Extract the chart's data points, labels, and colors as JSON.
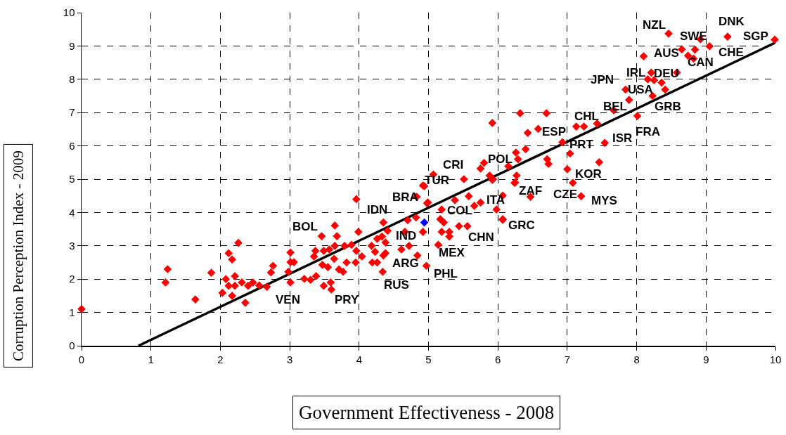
{
  "chart_data": {
    "type": "scatter",
    "xlabel": "Government Effectiveness - 2008",
    "ylabel": "Corruption Perception Index - 2009",
    "xlim": [
      0,
      10
    ],
    "ylim": [
      0,
      10
    ],
    "xticks": [
      0,
      1,
      2,
      3,
      4,
      5,
      6,
      7,
      8,
      9,
      10
    ],
    "yticks": [
      0,
      1,
      2,
      3,
      4,
      5,
      6,
      7,
      8,
      9,
      10
    ],
    "grid": true,
    "marker": "diamond",
    "series": [
      {
        "color": "#ff0000",
        "x": [
          0,
          1.21,
          1.24,
          1.64,
          1.87,
          2.26,
          2.12,
          2.17,
          2.21,
          2.08,
          2.03,
          2.12,
          2.21,
          2.17,
          2.31,
          2.36,
          2.4,
          2.47,
          2.56,
          2.67,
          2.73,
          2.76,
          3.01,
          3.01,
          3.06,
          2.98,
          3.01,
          3.21,
          3.3,
          3.38,
          3.49,
          3.59,
          3.6,
          3.37,
          3.49,
          3.57,
          3.65,
          3.79,
          3.89,
          3.35,
          3.47,
          3.55,
          3.64,
          3.71,
          3.77,
          3.82,
          3.95,
          3.96,
          4.04,
          4.18,
          4.23,
          4.19,
          4.26,
          4.35,
          4.38,
          4.26,
          4.33,
          4.38,
          4.41,
          4.34,
          4.61,
          4.72,
          4.84,
          4.66,
          4.7,
          4.82,
          4.92,
          4.97,
          5.14,
          4.99,
          4.94,
          4.83,
          5.19,
          5.17,
          5.22,
          5.19,
          5.3,
          5.3,
          5.44,
          5.56,
          5.38,
          5.58,
          5.66,
          5.75,
          5.98,
          6.07,
          5.51,
          6.25,
          5.93,
          3.96,
          3.65,
          3.46,
          3.68,
          3.99,
          4.35,
          6.32,
          6.7,
          5.92,
          6.43,
          6.58,
          6.93,
          7.13,
          7.24,
          7.43,
          7.54,
          7.04,
          6.4,
          6.26,
          6.29,
          6.71,
          6.73,
          7.46,
          7,
          7.08,
          7.2,
          5.75,
          5.8,
          6.15,
          6.27,
          6.24,
          5.88,
          5.92,
          6.47,
          6.07,
          6.07,
          5.07,
          4.92,
          4.98,
          8.46,
          9.31,
          9.99,
          8.92,
          9.05,
          8.65,
          8.84,
          8.74,
          8.82,
          8.1,
          8.58,
          8.21,
          8.16,
          8.25,
          8.36,
          8.41,
          8.23,
          7.84,
          7.89,
          7.67,
          8.01
        ],
        "values": [
          1.1,
          1.9,
          2.3,
          1.39,
          2.19,
          3.09,
          2.78,
          2.59,
          2.09,
          2,
          1.59,
          1.8,
          1.8,
          1.5,
          1.9,
          1.29,
          1.8,
          1.9,
          1.81,
          1.77,
          2.2,
          2.4,
          2.8,
          2.51,
          2.51,
          2.22,
          1.9,
          2.01,
          1.98,
          2.09,
          1.8,
          1.9,
          1.69,
          2.85,
          2.85,
          2.89,
          3,
          3,
          3.03,
          2.68,
          2.43,
          2.36,
          2.61,
          2.29,
          2.22,
          2.5,
          2.5,
          2.85,
          2.68,
          3,
          2.82,
          2.5,
          2.5,
          2.71,
          2.78,
          3.21,
          3.28,
          3.1,
          3.45,
          2.22,
          2.89,
          3,
          2.71,
          3.42,
          3.77,
          3.85,
          3.42,
          2.4,
          3.03,
          4.3,
          4.79,
          4.47,
          4.09,
          3.8,
          3.7,
          3.42,
          3.42,
          3.28,
          3.59,
          3.59,
          4.37,
          4.49,
          4.2,
          4.3,
          4.09,
          3.8,
          5,
          4.9,
          5,
          4.4,
          3.61,
          3.29,
          3.29,
          3.42,
          3.7,
          6.98,
          6.98,
          6.69,
          6.39,
          6.51,
          6.11,
          6.58,
          6.58,
          6.67,
          6.09,
          5.77,
          5.9,
          5.8,
          5.6,
          5.6,
          5.46,
          5.51,
          5.3,
          4.89,
          4.49,
          5.32,
          5.49,
          5.39,
          5.11,
          4.89,
          5.11,
          4.98,
          4.47,
          4.51,
          3.78,
          5.14,
          4.81,
          4.28,
          9.37,
          9.28,
          9.19,
          9.2,
          8.99,
          8.9,
          8.89,
          8.71,
          8.62,
          8.69,
          8.2,
          8.2,
          8,
          7.97,
          7.9,
          7.69,
          7.5,
          7.69,
          7.38,
          7.07,
          6.9
        ]
      },
      {
        "color": "#0000ff",
        "x": [
          4.94
        ],
        "values": [
          3.7
        ]
      },
      {
        "type": "line",
        "marker": "none",
        "color": "#000000",
        "x": [
          0.82,
          10
        ],
        "values": [
          0,
          9.1
        ]
      }
    ],
    "annotations": [
      {
        "text": "NZL",
        "x": 8.46,
        "y": 9.37
      },
      {
        "text": "DNK",
        "x": 9.31,
        "y": 9.28
      },
      {
        "text": "SWE",
        "x": 8.92,
        "y": 9.2
      },
      {
        "text": "SGP",
        "x": 9.99,
        "y": 9.19
      },
      {
        "text": "AUS",
        "x": 8.65,
        "y": 8.9
      },
      {
        "text": "CHE",
        "x": 9.05,
        "y": 8.99
      },
      {
        "text": "CAN",
        "x": 8.82,
        "y": 8.62
      },
      {
        "text": "JPN",
        "x": 7.84,
        "y": 7.69
      },
      {
        "text": "IRL",
        "x": 8.16,
        "y": 8
      },
      {
        "text": "DEU",
        "x": 8.58,
        "y": 8.2
      },
      {
        "text": "USA",
        "x": 7.89,
        "y": 7.38
      },
      {
        "text": "BEL",
        "x": 7.67,
        "y": 7.07
      },
      {
        "text": "GRB",
        "x": 8.23,
        "y": 7.5
      },
      {
        "text": "CHL",
        "x": 7.24,
        "y": 6.58
      },
      {
        "text": "FRA",
        "x": 8.01,
        "y": 6.9
      },
      {
        "text": "ESP",
        "x": 6.93,
        "y": 6.11
      },
      {
        "text": "ISR",
        "x": 7.54,
        "y": 6.09
      },
      {
        "text": "PRT",
        "x": 7.04,
        "y": 5.77
      },
      {
        "text": "POL",
        "x": 6.15,
        "y": 5.39
      },
      {
        "text": "CRI",
        "x": 5.51,
        "y": 5
      },
      {
        "text": "KOR",
        "x": 7,
        "y": 5.3
      },
      {
        "text": "TUR",
        "x": 4.94,
        "y": 4.79
      },
      {
        "text": "ZAF",
        "x": 6.47,
        "y": 4.47
      },
      {
        "text": "CZE",
        "x": 7.08,
        "y": 4.89
      },
      {
        "text": "BRA",
        "x": 4.83,
        "y": 4.47
      },
      {
        "text": "MYS",
        "x": 7.2,
        "y": 4.49
      },
      {
        "text": "ITA",
        "x": 6.07,
        "y": 4.51
      },
      {
        "text": "IDN",
        "x": 3.96,
        "y": 4.4
      },
      {
        "text": "COL",
        "x": 5.19,
        "y": 4.09
      },
      {
        "text": "GRC",
        "x": 6.07,
        "y": 3.78
      },
      {
        "text": "BOL",
        "x": 3.65,
        "y": 3.61
      },
      {
        "text": "IND",
        "x": 4.92,
        "y": 3.42
      },
      {
        "text": "CHN",
        "x": 5.56,
        "y": 3.59
      },
      {
        "text": "MEX",
        "x": 5.14,
        "y": 3.03
      },
      {
        "text": "ARG",
        "x": 4.84,
        "y": 2.71
      },
      {
        "text": "PHL",
        "x": 4.97,
        "y": 2.4
      },
      {
        "text": "RUS",
        "x": 4.34,
        "y": 2.22
      },
      {
        "text": "VEN",
        "x": 3.01,
        "y": 1.9
      },
      {
        "text": "PRY",
        "x": 3.6,
        "y": 1.69
      }
    ]
  }
}
